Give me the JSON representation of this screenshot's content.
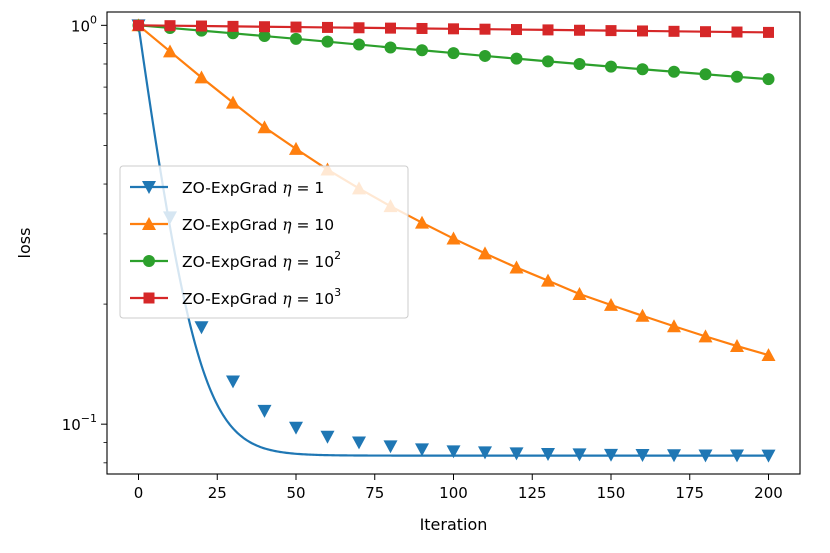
{
  "chart_data": {
    "type": "line",
    "xlabel": "Iteration",
    "ylabel": "loss",
    "yscale": "log",
    "xlim": [
      -10,
      210
    ],
    "ylim": [
      0.075,
      1.08
    ],
    "x_ticks": [
      0,
      25,
      50,
      75,
      100,
      125,
      150,
      175,
      200
    ],
    "x_tick_labels": [
      "0",
      "25",
      "50",
      "75",
      "100",
      "125",
      "150",
      "175",
      "200"
    ],
    "y_ticks": [
      {
        "value": 1,
        "base": "10",
        "exp": "0"
      },
      {
        "value": 0.1,
        "base": "10",
        "exp": "−1"
      }
    ],
    "grid": false,
    "legend": "center-left",
    "x": [
      0,
      10,
      20,
      30,
      40,
      50,
      60,
      70,
      80,
      90,
      100,
      110,
      120,
      130,
      140,
      150,
      160,
      170,
      180,
      190,
      200
    ],
    "series": [
      {
        "name_text": "ZO-ExpGrad ",
        "name_eta": "η",
        "name_rhs": " = 1",
        "name_sup": "",
        "color": "#1f77b4",
        "marker": "triangle-down",
        "values": [
          1.0,
          0.33,
          0.175,
          0.128,
          0.108,
          0.098,
          0.093,
          0.09,
          0.088,
          0.0865,
          0.0855,
          0.085,
          0.0845,
          0.0842,
          0.084,
          0.0838,
          0.0837,
          0.0836,
          0.0835,
          0.0835,
          0.0834
        ]
      },
      {
        "name_text": "ZO-ExpGrad ",
        "name_eta": "η",
        "name_rhs": " = 10",
        "name_sup": "",
        "color": "#ff7f0e",
        "marker": "triangle-up",
        "values": [
          1.0,
          0.86,
          0.74,
          0.64,
          0.555,
          0.49,
          0.435,
          0.39,
          0.352,
          0.32,
          0.292,
          0.268,
          0.247,
          0.229,
          0.212,
          0.199,
          0.187,
          0.176,
          0.166,
          0.157,
          0.149
        ]
      },
      {
        "name_text": "ZO-ExpGrad ",
        "name_eta": "η",
        "name_rhs": " = 10",
        "name_sup": "2",
        "color": "#2ca02c",
        "marker": "circle",
        "values": [
          1.0,
          0.985,
          0.97,
          0.955,
          0.94,
          0.925,
          0.91,
          0.895,
          0.88,
          0.866,
          0.852,
          0.838,
          0.825,
          0.812,
          0.8,
          0.788,
          0.776,
          0.765,
          0.754,
          0.743,
          0.733
        ]
      },
      {
        "name_text": "ZO-ExpGrad ",
        "name_eta": "η",
        "name_rhs": " = 10",
        "name_sup": "3",
        "color": "#d62728",
        "marker": "square",
        "values": [
          1.0,
          0.998,
          0.996,
          0.994,
          0.992,
          0.99,
          0.988,
          0.986,
          0.984,
          0.982,
          0.98,
          0.978,
          0.976,
          0.974,
          0.972,
          0.97,
          0.968,
          0.966,
          0.964,
          0.962,
          0.96
        ]
      }
    ]
  }
}
